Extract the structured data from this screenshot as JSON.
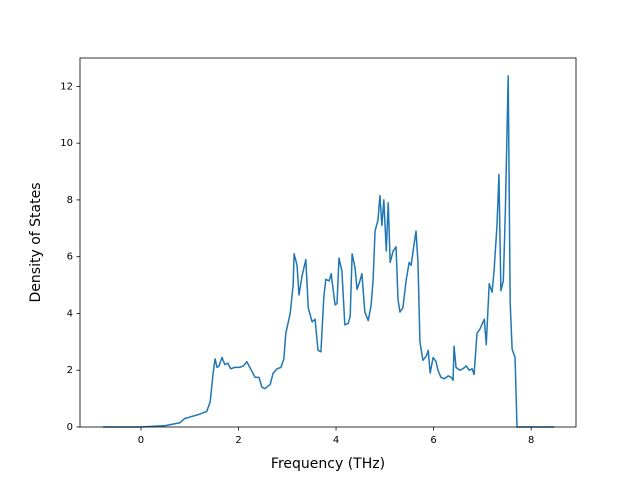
{
  "chart_data": {
    "type": "line",
    "xlabel": "Frequency (THz)",
    "ylabel": "Density of States",
    "color": "#1f77b4",
    "xlim": [
      -1.25,
      8.92
    ],
    "ylim": [
      0,
      13
    ],
    "xticks": [
      0,
      2,
      4,
      6,
      8
    ],
    "yticks": [
      0,
      2,
      4,
      6,
      8,
      10,
      12
    ],
    "x": [
      -0.78,
      0,
      0.5,
      0.8,
      0.9,
      1.0,
      1.2,
      1.35,
      1.42,
      1.48,
      1.52,
      1.56,
      1.6,
      1.66,
      1.72,
      1.78,
      1.84,
      1.92,
      2.02,
      2.1,
      2.17,
      2.34,
      2.42,
      2.48,
      2.54,
      2.65,
      2.71,
      2.79,
      2.87,
      2.93,
      2.97,
      3.06,
      3.12,
      3.14,
      3.2,
      3.24,
      3.3,
      3.38,
      3.43,
      3.51,
      3.57,
      3.63,
      3.69,
      3.75,
      3.79,
      3.86,
      3.9,
      3.98,
      4.02,
      4.06,
      4.12,
      4.18,
      4.25,
      4.29,
      4.33,
      4.39,
      4.43,
      4.49,
      4.53,
      4.59,
      4.66,
      4.72,
      4.76,
      4.8,
      4.86,
      4.9,
      4.94,
      4.98,
      5.03,
      5.07,
      5.11,
      5.17,
      5.23,
      5.27,
      5.31,
      5.37,
      5.44,
      5.5,
      5.54,
      5.58,
      5.64,
      5.68,
      5.72,
      5.78,
      5.85,
      5.89,
      5.93,
      5.99,
      6.05,
      6.09,
      6.15,
      6.22,
      6.3,
      6.36,
      6.4,
      6.42,
      6.46,
      6.54,
      6.6,
      6.67,
      6.73,
      6.79,
      6.83,
      6.89,
      6.95,
      7.04,
      7.08,
      7.14,
      7.2,
      7.24,
      7.3,
      7.34,
      7.38,
      7.43,
      7.47,
      7.53,
      7.57,
      7.61,
      7.67,
      7.71,
      8.47
    ],
    "values": [
      0,
      0,
      0.05,
      0.15,
      0.3,
      0.35,
      0.45,
      0.55,
      0.9,
      1.9,
      2.4,
      2.1,
      2.15,
      2.45,
      2.2,
      2.25,
      2.05,
      2.1,
      2.1,
      2.15,
      2.3,
      1.75,
      1.75,
      1.4,
      1.35,
      1.5,
      1.9,
      2.05,
      2.1,
      2.4,
      3.3,
      4.0,
      5.0,
      6.1,
      5.7,
      4.65,
      5.3,
      5.9,
      4.2,
      3.7,
      3.8,
      2.7,
      2.65,
      4.6,
      5.2,
      5.15,
      5.4,
      4.3,
      4.35,
      5.95,
      5.5,
      3.6,
      3.65,
      3.9,
      6.1,
      5.6,
      4.85,
      5.15,
      5.4,
      4.05,
      3.75,
      4.3,
      5.2,
      6.9,
      7.3,
      8.15,
      7.1,
      8.0,
      6.2,
      7.9,
      5.8,
      6.2,
      6.35,
      4.5,
      4.05,
      4.2,
      5.2,
      5.8,
      5.7,
      6.2,
      6.9,
      5.8,
      3.0,
      2.35,
      2.5,
      2.7,
      1.9,
      2.45,
      2.3,
      2.0,
      1.75,
      1.7,
      1.8,
      1.75,
      1.65,
      2.85,
      2.1,
      2.0,
      2.05,
      2.15,
      2.0,
      2.05,
      1.85,
      3.3,
      3.45,
      3.8,
      2.9,
      5.05,
      4.75,
      5.5,
      7.1,
      8.9,
      4.8,
      5.15,
      7.5,
      12.37,
      4.4,
      2.75,
      2.45,
      0,
      0
    ]
  }
}
